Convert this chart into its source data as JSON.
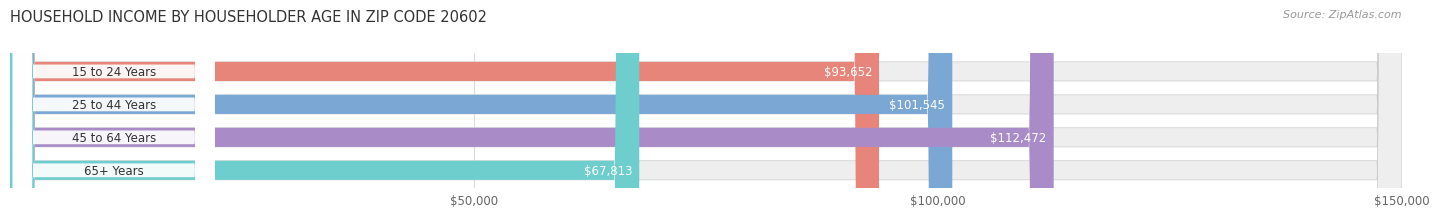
{
  "title": "HOUSEHOLD INCOME BY HOUSEHOLDER AGE IN ZIP CODE 20602",
  "source": "Source: ZipAtlas.com",
  "categories": [
    "15 to 24 Years",
    "25 to 44 Years",
    "45 to 64 Years",
    "65+ Years"
  ],
  "values": [
    93652,
    101545,
    112472,
    67813
  ],
  "bar_colors": [
    "#E8857A",
    "#7BA7D4",
    "#A98BC8",
    "#6ECECE"
  ],
  "value_labels": [
    "$93,652",
    "$101,545",
    "$112,472",
    "$67,813"
  ],
  "xlim": [
    0,
    150000
  ],
  "xtick_values": [
    50000,
    100000,
    150000
  ],
  "xtick_labels": [
    "$50,000",
    "$100,000",
    "$150,000"
  ],
  "title_fontsize": 10.5,
  "label_fontsize": 8.5,
  "value_fontsize": 8.5,
  "source_fontsize": 8,
  "fig_width": 14.06,
  "fig_height": 2.33,
  "background_color": "#FFFFFF",
  "bar_bg_color": "#EEEEEE"
}
